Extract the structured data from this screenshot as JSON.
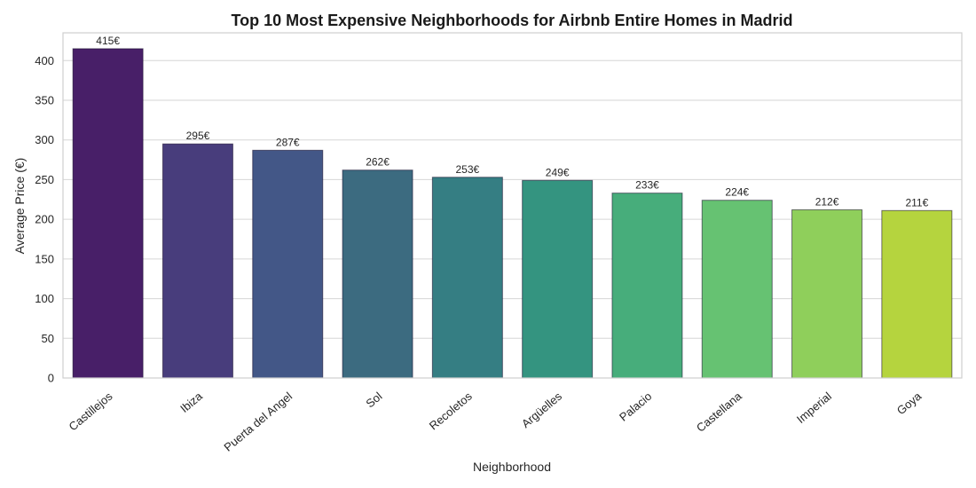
{
  "chart_data": {
    "type": "bar",
    "title": "Top 10 Most Expensive Neighborhoods for Airbnb Entire Homes in Madrid",
    "xlabel": "Neighborhood",
    "ylabel": "Average Price (€)",
    "categories": [
      "Castillejos",
      "Ibiza",
      "Puerta del Angel",
      "Sol",
      "Recoletos",
      "Argüelles",
      "Palacio",
      "Castellana",
      "Imperial",
      "Goya"
    ],
    "values": [
      415,
      295,
      287,
      262,
      253,
      249,
      233,
      224,
      212,
      211
    ],
    "data_labels": [
      "415€",
      "295€",
      "287€",
      "262€",
      "253€",
      "249€",
      "233€",
      "224€",
      "212€",
      "211€"
    ],
    "colors": [
      "#481f68",
      "#483d7c",
      "#435787",
      "#3c6b80",
      "#357e83",
      "#349480",
      "#47ad7b",
      "#66c272",
      "#8fcf5b",
      "#b5d43e"
    ],
    "yticks": [
      0,
      50,
      100,
      150,
      200,
      250,
      300,
      350,
      400
    ],
    "ylim": [
      0,
      435
    ],
    "grid": true,
    "legend": "none"
  }
}
